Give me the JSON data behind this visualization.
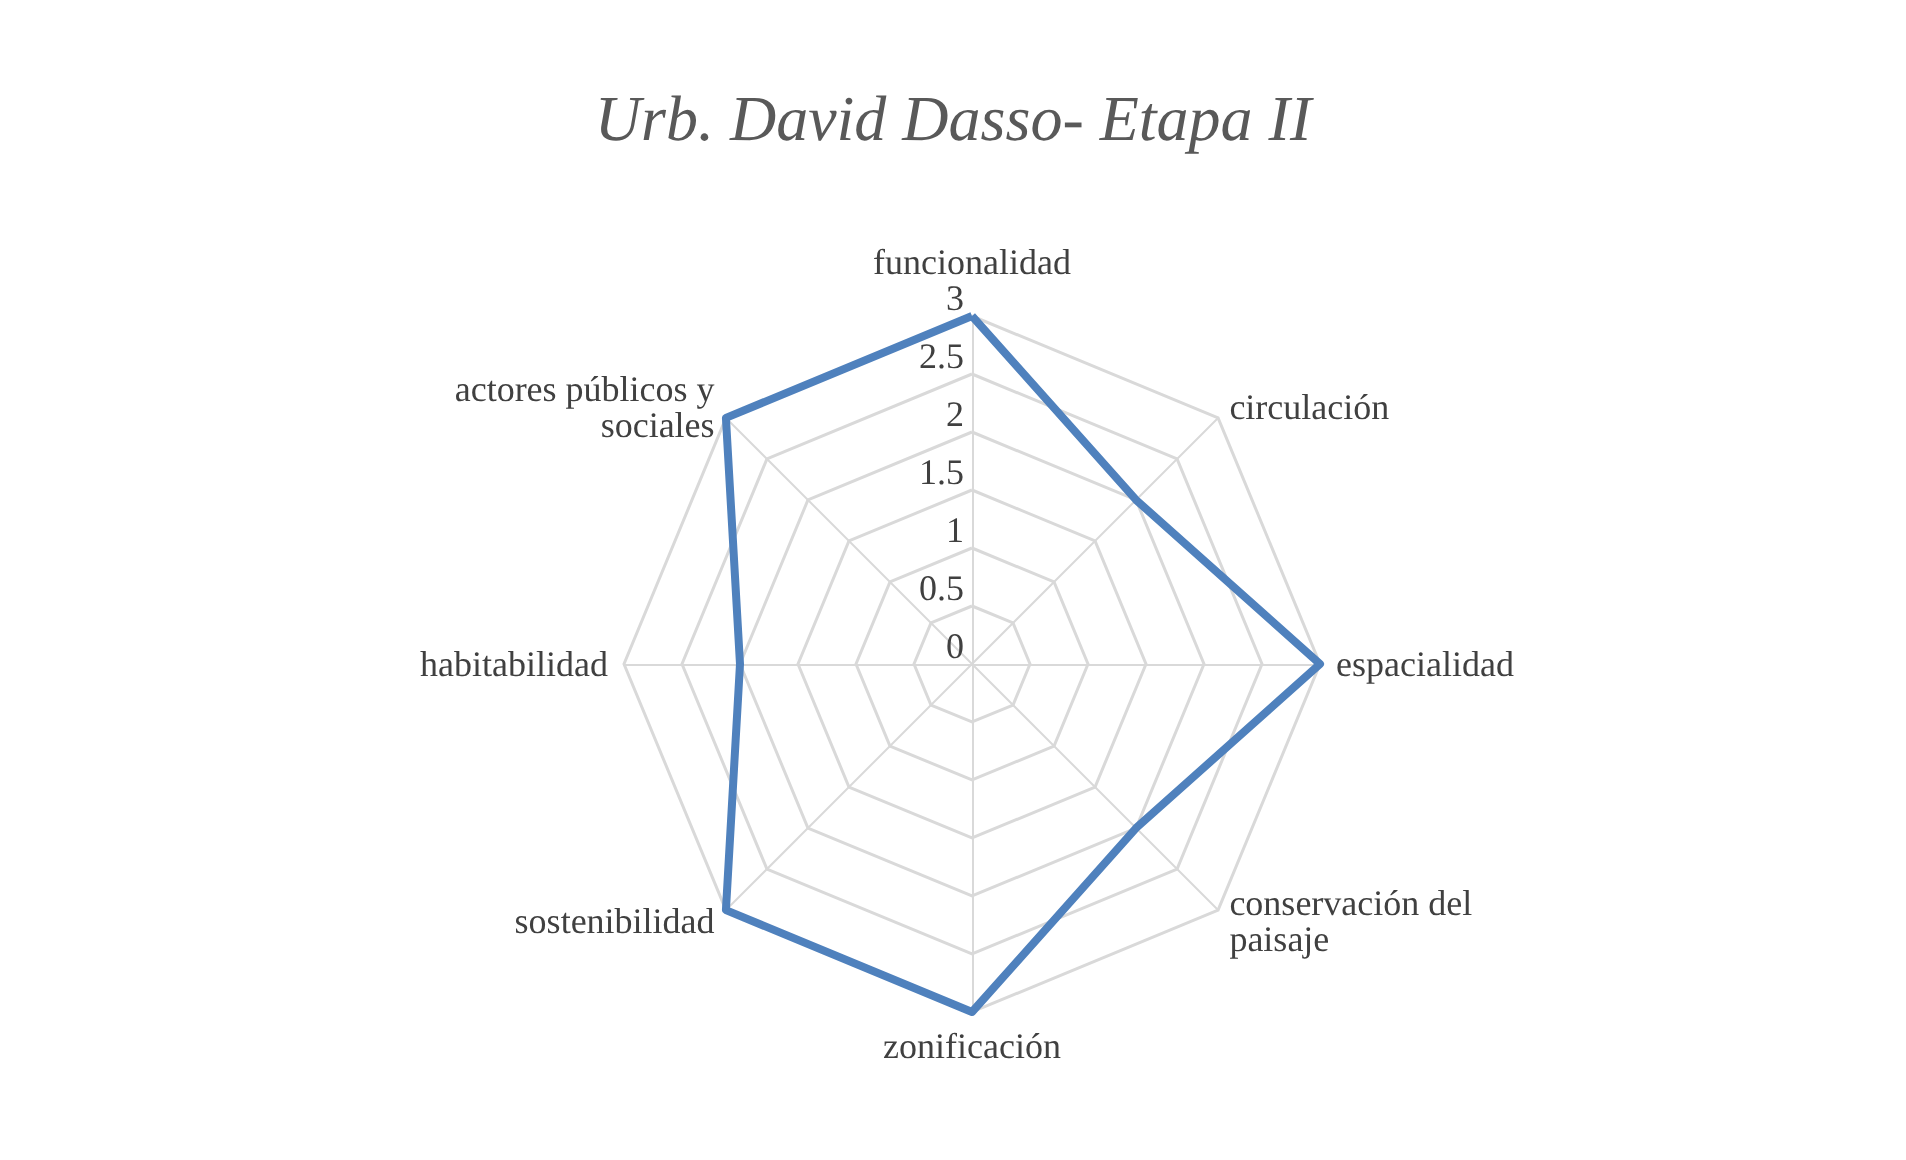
{
  "chart_data": {
    "type": "radar",
    "title": "Urb. David Dasso- Etapa II",
    "categories": [
      "funcionalidad",
      "circulación",
      "espacialidad",
      "conservación del paisaje",
      "zonificación",
      "sostenibilidad",
      "habitabilidad",
      "actores públicos y sociales"
    ],
    "series": [
      {
        "color": "#4f81bd",
        "values": [
          3,
          2,
          3,
          2,
          3,
          3,
          2,
          3
        ]
      }
    ],
    "ylim": [
      0,
      3
    ],
    "yticks": [
      0,
      0.5,
      1,
      1.5,
      2,
      2.5,
      3
    ],
    "grid": true,
    "marker": "none"
  }
}
